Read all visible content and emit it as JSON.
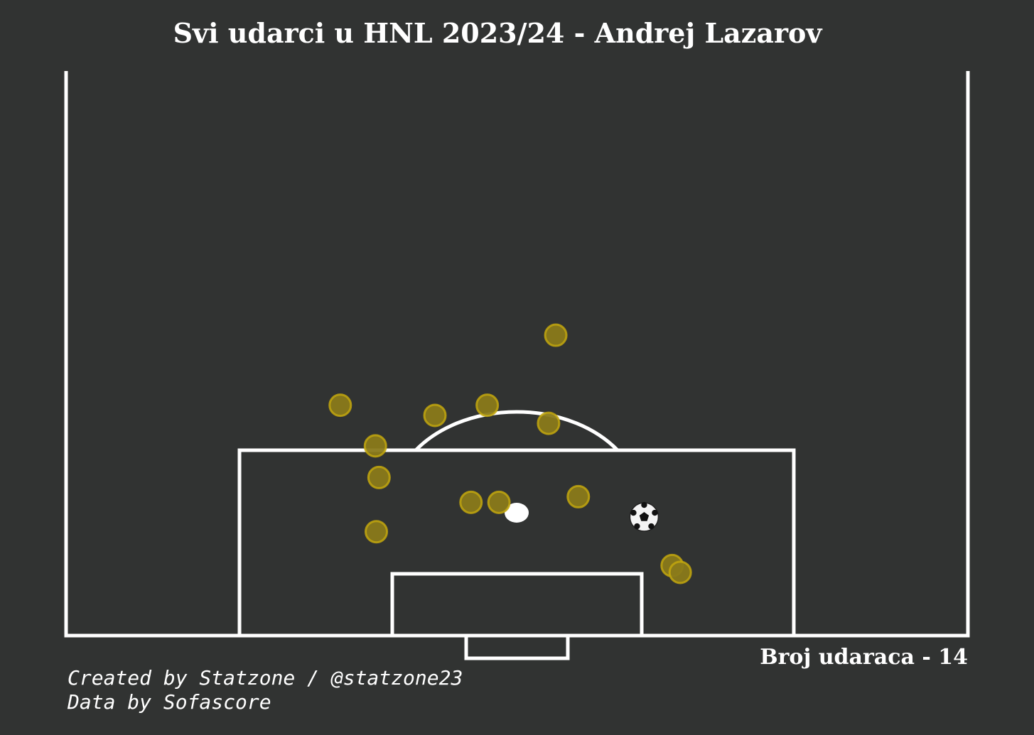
{
  "title": "Svi udarci u HNL 2023/24 - Andrej Lazarov",
  "shot_count_label": "Broj udaraca - 14",
  "credits": {
    "line1": "Created by Statzone / @statzone23",
    "line2": "Data by Sofascore"
  },
  "colors": {
    "background": "#313332",
    "lines": "#ffffff",
    "shot_fill": "#8a7a1a",
    "shot_edge": "#c2a70e"
  },
  "icons": {
    "goal_marker": "soccer-ball-icon"
  },
  "chart_data": {
    "type": "scatter",
    "description_axes": "half-pitch shot map, x = pitch width (0-100), y = distance from goal line (pitch units 0-50)",
    "xlim": [
      0,
      100
    ],
    "ylim": [
      0,
      50
    ],
    "shots": [
      {
        "x": 54.3,
        "y": 26.6,
        "outcome": "shot"
      },
      {
        "x": 30.4,
        "y": 20.4,
        "outcome": "shot"
      },
      {
        "x": 40.9,
        "y": 19.5,
        "outcome": "shot"
      },
      {
        "x": 46.7,
        "y": 20.4,
        "outcome": "shot"
      },
      {
        "x": 53.5,
        "y": 18.8,
        "outcome": "shot"
      },
      {
        "x": 34.3,
        "y": 16.8,
        "outcome": "shot"
      },
      {
        "x": 34.7,
        "y": 14.0,
        "outcome": "shot"
      },
      {
        "x": 44.9,
        "y": 11.8,
        "outcome": "shot"
      },
      {
        "x": 48.0,
        "y": 11.8,
        "outcome": "shot"
      },
      {
        "x": 56.8,
        "y": 12.3,
        "outcome": "shot"
      },
      {
        "x": 34.4,
        "y": 9.2,
        "outcome": "shot"
      },
      {
        "x": 67.2,
        "y": 6.2,
        "outcome": "shot"
      },
      {
        "x": 68.1,
        "y": 5.6,
        "outcome": "shot"
      },
      {
        "x": 64.1,
        "y": 10.5,
        "outcome": "goal"
      }
    ]
  }
}
